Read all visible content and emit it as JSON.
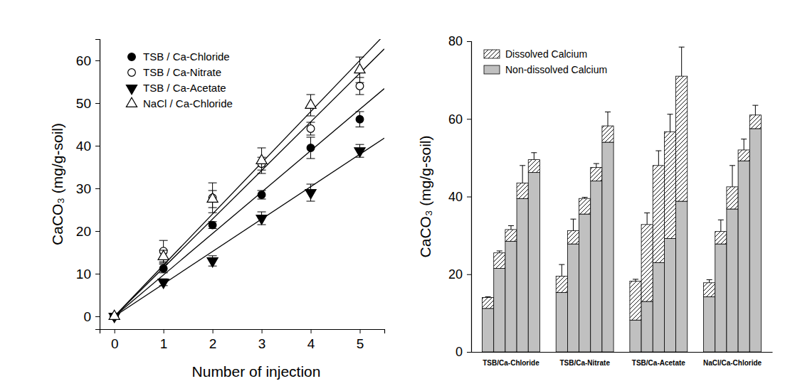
{
  "chart_data": [
    {
      "type": "scatter",
      "x_label": "Number of injection",
      "y_label": "CaCO₃ (mg/g-soil)",
      "x": [
        0,
        1,
        2,
        3,
        4,
        5
      ],
      "xlim": [
        -0.3,
        5.5
      ],
      "xticks": [
        0,
        1,
        2,
        3,
        4,
        5
      ],
      "ylim": [
        -3,
        65
      ],
      "yticks": [
        0,
        10,
        20,
        30,
        40,
        50,
        60
      ],
      "legend": "top-left",
      "series": [
        {
          "name": "TSB / Ca-Chloride",
          "color": "#000000",
          "marker": "circle",
          "values": [
            0,
            11.2,
            21.4,
            28.5,
            39.5,
            46.2
          ],
          "errors": [
            0,
            1.0,
            0.8,
            1.0,
            2.5,
            1.8
          ],
          "fit_x": [
            0,
            5.5
          ],
          "fit_y": [
            0,
            53.4
          ]
        },
        {
          "name": "TSB / Ca-Nitrate",
          "color": "#000000",
          "marker": "circle-open",
          "values": [
            0,
            15.3,
            27.8,
            35.8,
            44.0,
            54.0
          ],
          "errors": [
            0,
            2.5,
            3.5,
            1.5,
            1.5,
            2.0
          ],
          "fit_x": [
            0,
            5.5
          ],
          "fit_y": [
            0,
            62.7
          ]
        },
        {
          "name": "TSB / Ca-Acetate",
          "color": "#000000",
          "marker": "triangle-down",
          "values": [
            0,
            8.0,
            13.0,
            23.0,
            29.0,
            38.8
          ],
          "errors": [
            0,
            0.8,
            1.2,
            1.5,
            2.0,
            1.5
          ],
          "fit_x": [
            0,
            5.5
          ],
          "fit_y": [
            0,
            41.8
          ]
        },
        {
          "name": "NaCl / Ca-Chloride",
          "color": "#000000",
          "marker": "triangle-up-open",
          "values": [
            0,
            14.0,
            27.5,
            36.5,
            49.5,
            57.8
          ],
          "errors": [
            0,
            1.5,
            2.0,
            3.0,
            2.5,
            3.0
          ],
          "fit_x": [
            0,
            5.5
          ],
          "fit_y": [
            0,
            66.0
          ]
        }
      ]
    },
    {
      "type": "bar",
      "stacked": true,
      "y_label": "CaCO₃ (mg/g-soil)",
      "categories": [
        "TSB/Ca-Chloride",
        "TSB/Ca-Nitrate",
        "TSB/Ca-Acetate",
        "NaCl/Ca-Chloride"
      ],
      "ylim": [
        0,
        80
      ],
      "yticks": [
        0,
        20,
        40,
        60,
        80
      ],
      "legend": "top-left",
      "series": [
        {
          "name": "Non-dissolved Calcium",
          "color": "#c0c0c0",
          "values": [
            [
              11.2,
              21.5,
              28.5,
              39.5,
              46.2
            ],
            [
              15.3,
              27.8,
              35.5,
              44.0,
              54.0
            ],
            [
              8.2,
              13.0,
              23.0,
              29.2,
              38.8
            ],
            [
              14.2,
              27.8,
              36.8,
              49.2,
              57.5
            ]
          ]
        },
        {
          "name": "Dissolved Calcium",
          "color": "#000000",
          "values": [
            [
              2.8,
              4.0,
              3.0,
              4.0,
              3.3
            ],
            [
              4.2,
              3.4,
              4.0,
              3.5,
              4.2
            ],
            [
              10.0,
              19.8,
              25.0,
              27.5,
              32.2
            ],
            [
              3.6,
              3.2,
              5.7,
              2.8,
              3.5
            ]
          ],
          "errors": [
            [
              0.2,
              0.5,
              1.0,
              4.5,
              1.8
            ],
            [
              3.0,
              3.0,
              0.3,
              1.0,
              3.6
            ],
            [
              0.5,
              3.0,
              3.8,
              4.5,
              7.5
            ],
            [
              0.8,
              3.0,
              5.5,
              2.8,
              2.5
            ]
          ]
        }
      ]
    }
  ]
}
